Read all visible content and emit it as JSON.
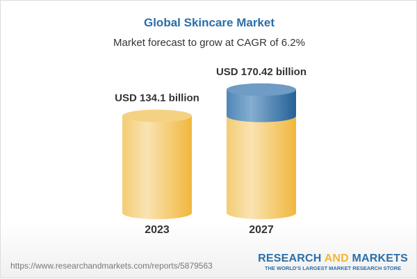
{
  "chart_data": {
    "type": "bar",
    "style": "3d-cylinder",
    "title": "Global Skincare Market",
    "subtitle": "Market forecast to grow at CAGR of 6.2%",
    "categories": [
      "2023",
      "2027"
    ],
    "values": [
      134.1,
      170.42
    ],
    "data_labels": [
      "USD 134.1 billion",
      "USD 170.42 billion"
    ],
    "unit": "USD billion",
    "colors": {
      "base": "#f2c45a",
      "growth": "#3f7fb3",
      "title": "#2a6ea8"
    }
  },
  "footer": {
    "url": "https://www.researchandmarkets.com/reports/5879563",
    "logo_part1": "RESEARCH ",
    "logo_part2": "AND",
    "logo_part3": " MARKETS",
    "tagline": "THE WORLD'S LARGEST MARKET RESEARCH STORE"
  }
}
